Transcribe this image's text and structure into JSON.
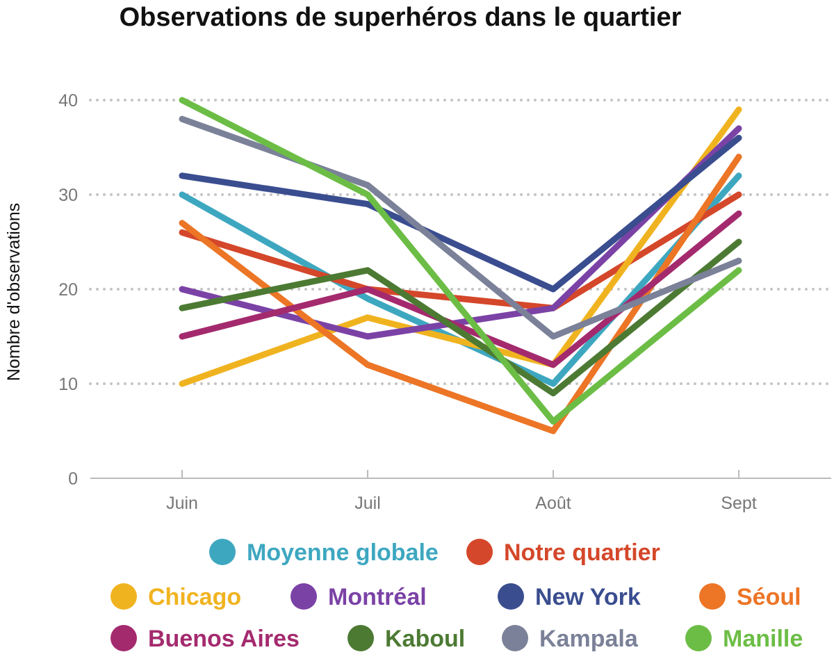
{
  "chart_data": {
    "type": "line",
    "title": "Observations de superhéros dans le quartier",
    "xlabel": "",
    "ylabel": "Nombre d'observations",
    "categories": [
      "Juin",
      "Juil",
      "Août",
      "Sept"
    ],
    "ylim": [
      0,
      40
    ],
    "yticks": [
      0,
      10,
      20,
      30,
      40
    ],
    "grid": true,
    "legend_position": "bottom",
    "series": [
      {
        "name": "Moyenne globale",
        "color": "#3ea7c0",
        "values": [
          30,
          19,
          10,
          32
        ]
      },
      {
        "name": "Notre quartier",
        "color": "#d4472a",
        "values": [
          26,
          20,
          18,
          30
        ]
      },
      {
        "name": "Chicago",
        "color": "#f0b320",
        "values": [
          10,
          17,
          12,
          39
        ]
      },
      {
        "name": "Montréal",
        "color": "#7b42a6",
        "values": [
          20,
          15,
          18,
          37
        ]
      },
      {
        "name": "New York",
        "color": "#3a4d8f",
        "values": [
          32,
          29,
          20,
          36
        ]
      },
      {
        "name": "Séoul",
        "color": "#ec7526",
        "values": [
          27,
          12,
          5,
          34
        ]
      },
      {
        "name": "Buenos Aires",
        "color": "#a42a6e",
        "values": [
          15,
          20,
          12,
          28
        ]
      },
      {
        "name": "Kaboul",
        "color": "#4c7a33",
        "values": [
          18,
          22,
          9,
          25
        ]
      },
      {
        "name": "Kampala",
        "color": "#7a8198",
        "values": [
          38,
          31,
          15,
          23
        ]
      },
      {
        "name": "Manille",
        "color": "#6cbd45",
        "values": [
          40,
          30,
          6,
          22
        ]
      }
    ]
  }
}
